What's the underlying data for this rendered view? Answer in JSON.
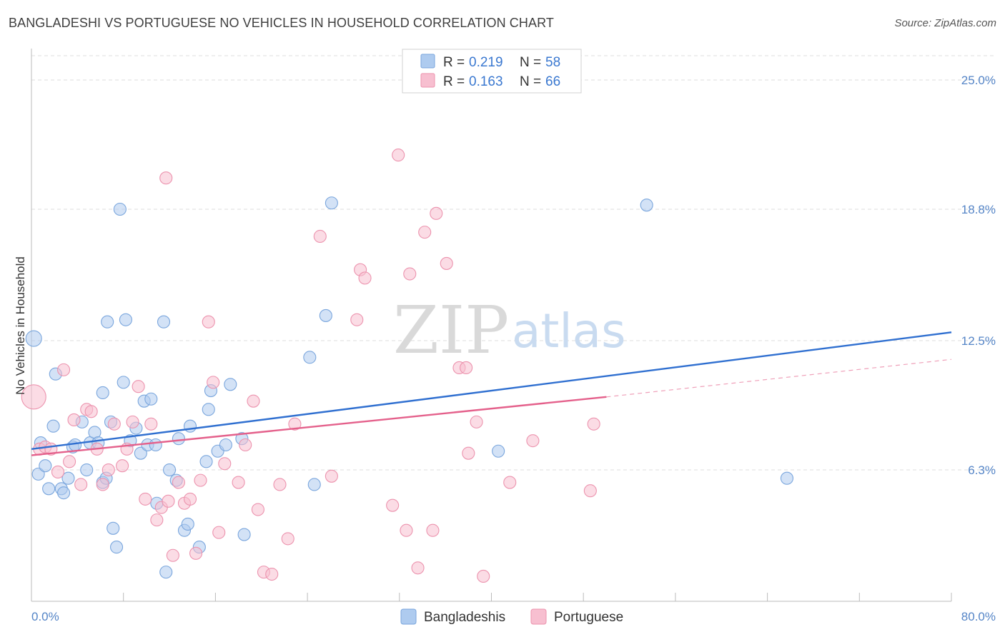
{
  "title": "BANGLADESHI VS PORTUGUESE NO VEHICLES IN HOUSEHOLD CORRELATION CHART",
  "source": "Source: ZipAtlas.com",
  "colors": {
    "blue_fill": "#aecbef",
    "blue_stroke": "#7aa6dd",
    "blue_line": "#2f6fd0",
    "pink_fill": "#f7bfd0",
    "pink_stroke": "#ec93ae",
    "pink_line": "#e4608b",
    "grid": "#dddddd",
    "tick_label": "#5585c7"
  },
  "legend": {
    "rows": [
      {
        "r_label": "R =",
        "r_value": "0.219",
        "n_label": "N =",
        "n_value": "58",
        "series": "blue"
      },
      {
        "r_label": "R =",
        "r_value": "0.163",
        "n_label": "N =",
        "n_value": "66",
        "series": "pink"
      }
    ]
  },
  "watermark": {
    "zip": "ZIP",
    "atlas": "atlas"
  },
  "chart_data": {
    "type": "scatter",
    "title": "BANGLADESHI VS PORTUGUESE NO VEHICLES IN HOUSEHOLD CORRELATION CHART",
    "xlabel": "",
    "ylabel": "No Vehicles in Household",
    "xlim": [
      0,
      80
    ],
    "ylim": [
      0,
      26.3
    ],
    "x_tick_labels": [
      "0.0%",
      "80.0%"
    ],
    "y_ticks": [
      6.3,
      12.5,
      18.8,
      25.0
    ],
    "y_tick_labels": [
      "6.3%",
      "12.5%",
      "18.8%",
      "25.0%"
    ],
    "legend_position": "top-center",
    "series": [
      {
        "name": "Bangladeshis",
        "color": "blue",
        "trend": {
          "x0": 0,
          "y0": 7.3,
          "x1": 80,
          "y1": 12.9
        },
        "points": [
          [
            0.2,
            12.6,
            2
          ],
          [
            0.8,
            7.6,
            1
          ],
          [
            0.6,
            6.1,
            1
          ],
          [
            1.2,
            6.5,
            1
          ],
          [
            1.5,
            5.4,
            1
          ],
          [
            1.9,
            8.4,
            1
          ],
          [
            2.1,
            10.9,
            1
          ],
          [
            2.6,
            5.4,
            1
          ],
          [
            2.8,
            5.2,
            1
          ],
          [
            3.2,
            5.9,
            1
          ],
          [
            3.6,
            7.4,
            1
          ],
          [
            3.8,
            7.5,
            1
          ],
          [
            4.4,
            8.6,
            1
          ],
          [
            4.8,
            6.3,
            1
          ],
          [
            5.1,
            7.6,
            1
          ],
          [
            5.5,
            8.1,
            1
          ],
          [
            5.8,
            7.6,
            1
          ],
          [
            6.2,
            5.7,
            1
          ],
          [
            6.5,
            5.9,
            1
          ],
          [
            6.2,
            10.0,
            1
          ],
          [
            6.6,
            13.4,
            1
          ],
          [
            6.9,
            8.6,
            1
          ],
          [
            7.1,
            3.5,
            1
          ],
          [
            7.4,
            2.6,
            1
          ],
          [
            7.7,
            18.8,
            1
          ],
          [
            8.0,
            10.5,
            1
          ],
          [
            8.2,
            13.5,
            1
          ],
          [
            8.6,
            7.7,
            1
          ],
          [
            9.1,
            8.3,
            1
          ],
          [
            9.5,
            7.1,
            1
          ],
          [
            9.8,
            9.6,
            1
          ],
          [
            10.1,
            7.5,
            1
          ],
          [
            10.4,
            9.7,
            1
          ],
          [
            10.8,
            7.5,
            1
          ],
          [
            10.9,
            4.7,
            1
          ],
          [
            11.5,
            13.4,
            1
          ],
          [
            11.7,
            1.4,
            1
          ],
          [
            12.0,
            6.3,
            1
          ],
          [
            12.6,
            5.8,
            1
          ],
          [
            12.8,
            7.8,
            1
          ],
          [
            13.3,
            3.4,
            1
          ],
          [
            13.6,
            3.7,
            1
          ],
          [
            13.8,
            8.4,
            1
          ],
          [
            14.6,
            2.6,
            1
          ],
          [
            15.2,
            6.7,
            1
          ],
          [
            15.4,
            9.2,
            1
          ],
          [
            15.6,
            10.1,
            1
          ],
          [
            16.2,
            7.2,
            1
          ],
          [
            16.9,
            7.5,
            1
          ],
          [
            17.3,
            10.4,
            1
          ],
          [
            18.3,
            7.8,
            1
          ],
          [
            18.5,
            3.2,
            1
          ],
          [
            24.2,
            11.7,
            1
          ],
          [
            24.6,
            5.6,
            1
          ],
          [
            25.6,
            13.7,
            1
          ],
          [
            26.1,
            19.1,
            1
          ],
          [
            40.6,
            7.2,
            1
          ],
          [
            53.5,
            19.0,
            1
          ],
          [
            65.7,
            5.9,
            1
          ]
        ]
      },
      {
        "name": "Portuguese",
        "color": "pink",
        "trend": {
          "x0": 0,
          "y0": 7.0,
          "x1": 50,
          "y1": 9.8
        },
        "trend_ext": {
          "x0": 50,
          "y0": 9.8,
          "x1": 80,
          "y1": 11.6
        },
        "points": [
          [
            0.2,
            9.8,
            2
          ],
          [
            0.7,
            7.3,
            1
          ],
          [
            1.2,
            7.4,
            1
          ],
          [
            1.7,
            7.3,
            1
          ],
          [
            2.3,
            6.2,
            1
          ],
          [
            2.8,
            11.1,
            1
          ],
          [
            3.3,
            6.7,
            1
          ],
          [
            3.7,
            8.7,
            1
          ],
          [
            4.3,
            5.6,
            1
          ],
          [
            4.8,
            9.2,
            1
          ],
          [
            5.2,
            9.1,
            1
          ],
          [
            5.7,
            7.3,
            1
          ],
          [
            6.2,
            5.6,
            1
          ],
          [
            6.7,
            6.3,
            1
          ],
          [
            7.2,
            8.5,
            1
          ],
          [
            7.9,
            6.5,
            1
          ],
          [
            8.3,
            7.3,
            1
          ],
          [
            8.8,
            8.6,
            1
          ],
          [
            9.3,
            10.3,
            1
          ],
          [
            9.9,
            4.9,
            1
          ],
          [
            10.4,
            8.5,
            1
          ],
          [
            10.9,
            3.9,
            1
          ],
          [
            11.3,
            4.5,
            1
          ],
          [
            11.7,
            20.3,
            1
          ],
          [
            11.9,
            4.8,
            1
          ],
          [
            12.3,
            2.2,
            1
          ],
          [
            12.8,
            5.7,
            1
          ],
          [
            13.3,
            4.7,
            1
          ],
          [
            13.8,
            4.9,
            1
          ],
          [
            14.3,
            2.3,
            1
          ],
          [
            14.7,
            5.8,
            1
          ],
          [
            15.4,
            13.4,
            1
          ],
          [
            15.8,
            10.5,
            1
          ],
          [
            16.3,
            3.3,
            1
          ],
          [
            16.8,
            6.6,
            1
          ],
          [
            18.0,
            5.7,
            1
          ],
          [
            18.6,
            7.5,
            1
          ],
          [
            19.3,
            9.6,
            1
          ],
          [
            19.7,
            4.4,
            1
          ],
          [
            20.2,
            1.4,
            1
          ],
          [
            20.9,
            1.3,
            1
          ],
          [
            21.6,
            5.6,
            1
          ],
          [
            22.3,
            3.0,
            1
          ],
          [
            22.9,
            8.5,
            1
          ],
          [
            25.1,
            17.5,
            1
          ],
          [
            26.1,
            6.0,
            1
          ],
          [
            28.3,
            13.5,
            1
          ],
          [
            28.6,
            15.9,
            1
          ],
          [
            29.0,
            15.5,
            1
          ],
          [
            31.4,
            4.6,
            1
          ],
          [
            31.9,
            21.4,
            1
          ],
          [
            32.6,
            3.4,
            1
          ],
          [
            32.9,
            15.7,
            1
          ],
          [
            33.6,
            1.6,
            1
          ],
          [
            34.2,
            17.7,
            1
          ],
          [
            34.9,
            3.4,
            1
          ],
          [
            35.2,
            18.6,
            1
          ],
          [
            36.1,
            16.2,
            1
          ],
          [
            37.2,
            11.2,
            1
          ],
          [
            37.8,
            11.2,
            1
          ],
          [
            38.0,
            7.1,
            1
          ],
          [
            38.7,
            8.6,
            1
          ],
          [
            39.3,
            1.2,
            1
          ],
          [
            41.6,
            5.7,
            1
          ],
          [
            43.6,
            7.7,
            1
          ],
          [
            48.6,
            5.3,
            1
          ],
          [
            48.9,
            8.5,
            1
          ]
        ]
      }
    ]
  },
  "bottom_legend": {
    "items": [
      {
        "label": "Bangladeshis",
        "series": "blue"
      },
      {
        "label": "Portuguese",
        "series": "pink"
      }
    ]
  }
}
